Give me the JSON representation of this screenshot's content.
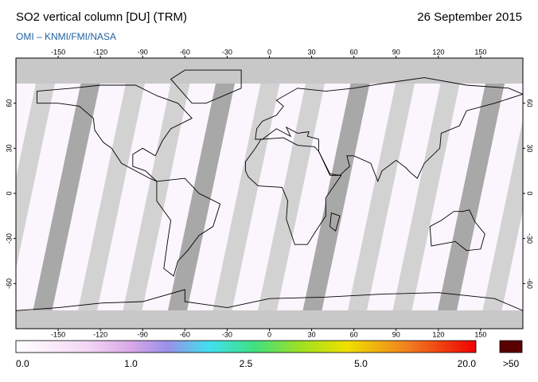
{
  "header": {
    "title": "SO2 vertical column [DU] (TRM)",
    "date": "26 September 2015",
    "credit": "OMI  –  KNMI/FMI/NASA"
  },
  "map": {
    "lon_ticks": [
      -150,
      -120,
      -90,
      -60,
      -30,
      0,
      30,
      60,
      90,
      120,
      150
    ],
    "lat_ticks": [
      60,
      30,
      0,
      -30,
      -60
    ]
  },
  "colorbar": {
    "labels": [
      "0.0",
      "1.0",
      "2.5",
      "5.0",
      "20.0"
    ],
    "overflow_label": ">50"
  }
}
